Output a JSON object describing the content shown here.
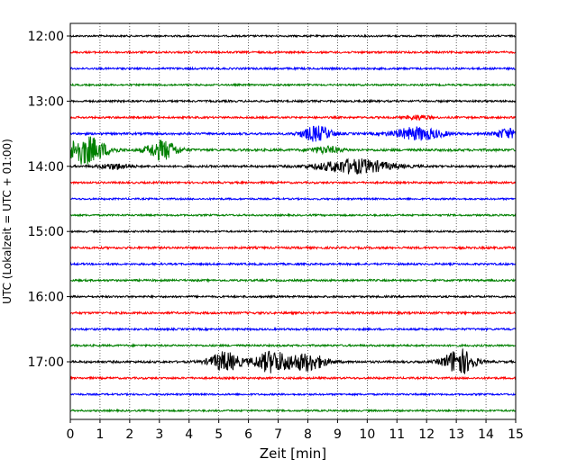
{
  "chart_data": {
    "type": "line",
    "xlabel": "Zeit  [min]",
    "ylabel": "UTC (Lokalzeit = UTC + 01:00)",
    "xlim": [
      0,
      15
    ],
    "xticks": [
      0,
      1,
      2,
      3,
      4,
      5,
      6,
      7,
      8,
      9,
      10,
      11,
      12,
      13,
      14,
      15
    ],
    "xtick_labels": [
      "0",
      "1",
      "2",
      "3",
      "4",
      "5",
      "6",
      "7",
      "8",
      "9",
      "10",
      "11",
      "12",
      "13",
      "14",
      "15"
    ],
    "ytick_labels": [
      "12:00",
      "13:00",
      "14:00",
      "15:00",
      "16:00",
      "17:00"
    ],
    "ytick_rows": [
      0,
      4,
      8,
      12,
      16,
      20
    ],
    "grid": "vertical-dotted",
    "row_interval_minutes": 15,
    "rows": [
      {
        "time": "12:00",
        "color": "#000000",
        "amp": 0.16,
        "bursts": []
      },
      {
        "time": "12:15",
        "color": "#ff0000",
        "amp": 0.18,
        "bursts": []
      },
      {
        "time": "12:30",
        "color": "#0000ff",
        "amp": 0.18,
        "bursts": []
      },
      {
        "time": "12:45",
        "color": "#008000",
        "amp": 0.16,
        "bursts": []
      },
      {
        "time": "13:00",
        "color": "#000000",
        "amp": 0.18,
        "bursts": []
      },
      {
        "time": "13:15",
        "color": "#ff0000",
        "amp": 0.18,
        "bursts": [
          {
            "t": 11.7,
            "w": 0.4,
            "a": 0.4
          }
        ]
      },
      {
        "time": "13:30",
        "color": "#0000ff",
        "amp": 0.2,
        "bursts": [
          {
            "t": 8.3,
            "w": 0.5,
            "a": 1.4
          },
          {
            "t": 11.7,
            "w": 0.8,
            "a": 1.2
          },
          {
            "t": 14.7,
            "w": 0.4,
            "a": 0.9
          }
        ]
      },
      {
        "time": "13:45",
        "color": "#008000",
        "amp": 0.22,
        "bursts": [
          {
            "t": 0.5,
            "w": 0.7,
            "a": 2.6
          },
          {
            "t": 3.1,
            "w": 0.5,
            "a": 1.8
          },
          {
            "t": 8.6,
            "w": 0.5,
            "a": 0.6
          }
        ]
      },
      {
        "time": "14:00",
        "color": "#000000",
        "amp": 0.2,
        "bursts": [
          {
            "t": 1.5,
            "w": 0.5,
            "a": 0.5
          },
          {
            "t": 9.6,
            "w": 1.2,
            "a": 1.3
          }
        ]
      },
      {
        "time": "14:15",
        "color": "#ff0000",
        "amp": 0.18,
        "bursts": []
      },
      {
        "time": "14:30",
        "color": "#0000ff",
        "amp": 0.16,
        "bursts": []
      },
      {
        "time": "14:45",
        "color": "#008000",
        "amp": 0.16,
        "bursts": []
      },
      {
        "time": "15:00",
        "color": "#000000",
        "amp": 0.16,
        "bursts": []
      },
      {
        "time": "15:15",
        "color": "#ff0000",
        "amp": 0.2,
        "bursts": []
      },
      {
        "time": "15:30",
        "color": "#0000ff",
        "amp": 0.18,
        "bursts": []
      },
      {
        "time": "15:45",
        "color": "#008000",
        "amp": 0.18,
        "bursts": []
      },
      {
        "time": "16:00",
        "color": "#000000",
        "amp": 0.18,
        "bursts": []
      },
      {
        "time": "16:15",
        "color": "#ff0000",
        "amp": 0.2,
        "bursts": []
      },
      {
        "time": "16:30",
        "color": "#0000ff",
        "amp": 0.18,
        "bursts": []
      },
      {
        "time": "16:45",
        "color": "#008000",
        "amp": 0.18,
        "bursts": []
      },
      {
        "time": "17:00",
        "color": "#000000",
        "amp": 0.2,
        "bursts": [
          {
            "t": 5.2,
            "w": 0.5,
            "a": 1.8
          },
          {
            "t": 6.8,
            "w": 0.6,
            "a": 2.0
          },
          {
            "t": 8.0,
            "w": 0.6,
            "a": 1.6
          },
          {
            "t": 13.1,
            "w": 0.5,
            "a": 2.4
          }
        ]
      },
      {
        "time": "17:15",
        "color": "#ff0000",
        "amp": 0.18,
        "bursts": []
      },
      {
        "time": "17:30",
        "color": "#0000ff",
        "amp": 0.16,
        "bursts": []
      },
      {
        "time": "17:45",
        "color": "#008000",
        "amp": 0.16,
        "bursts": []
      }
    ]
  }
}
